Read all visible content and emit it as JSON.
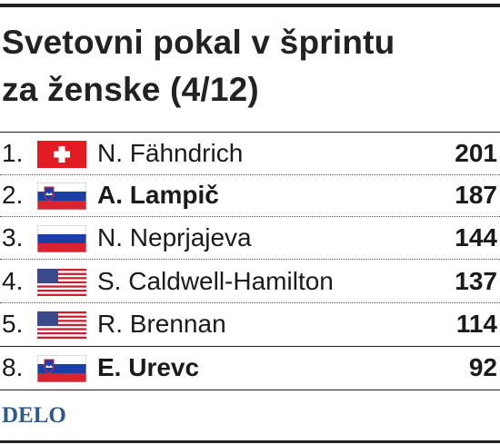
{
  "header": {
    "title_lines": [
      "Svetovni pokal v šprintu",
      "za ženske (4/12)"
    ]
  },
  "table": {
    "rows": [
      [
        "1.",
        "N. Fähndrich",
        "201"
      ],
      [
        "2.",
        "A. Lampič",
        "187"
      ],
      [
        "3.",
        "N. Neprjajeva",
        "144"
      ],
      [
        "4.",
        "S. Caldwell-Hamilton",
        "137"
      ],
      [
        "5.",
        "R. Brennan",
        "114"
      ],
      [
        "8.",
        "E. Urevc",
        "92"
      ]
    ]
  },
  "footer": {
    "logo": "DELO"
  }
}
